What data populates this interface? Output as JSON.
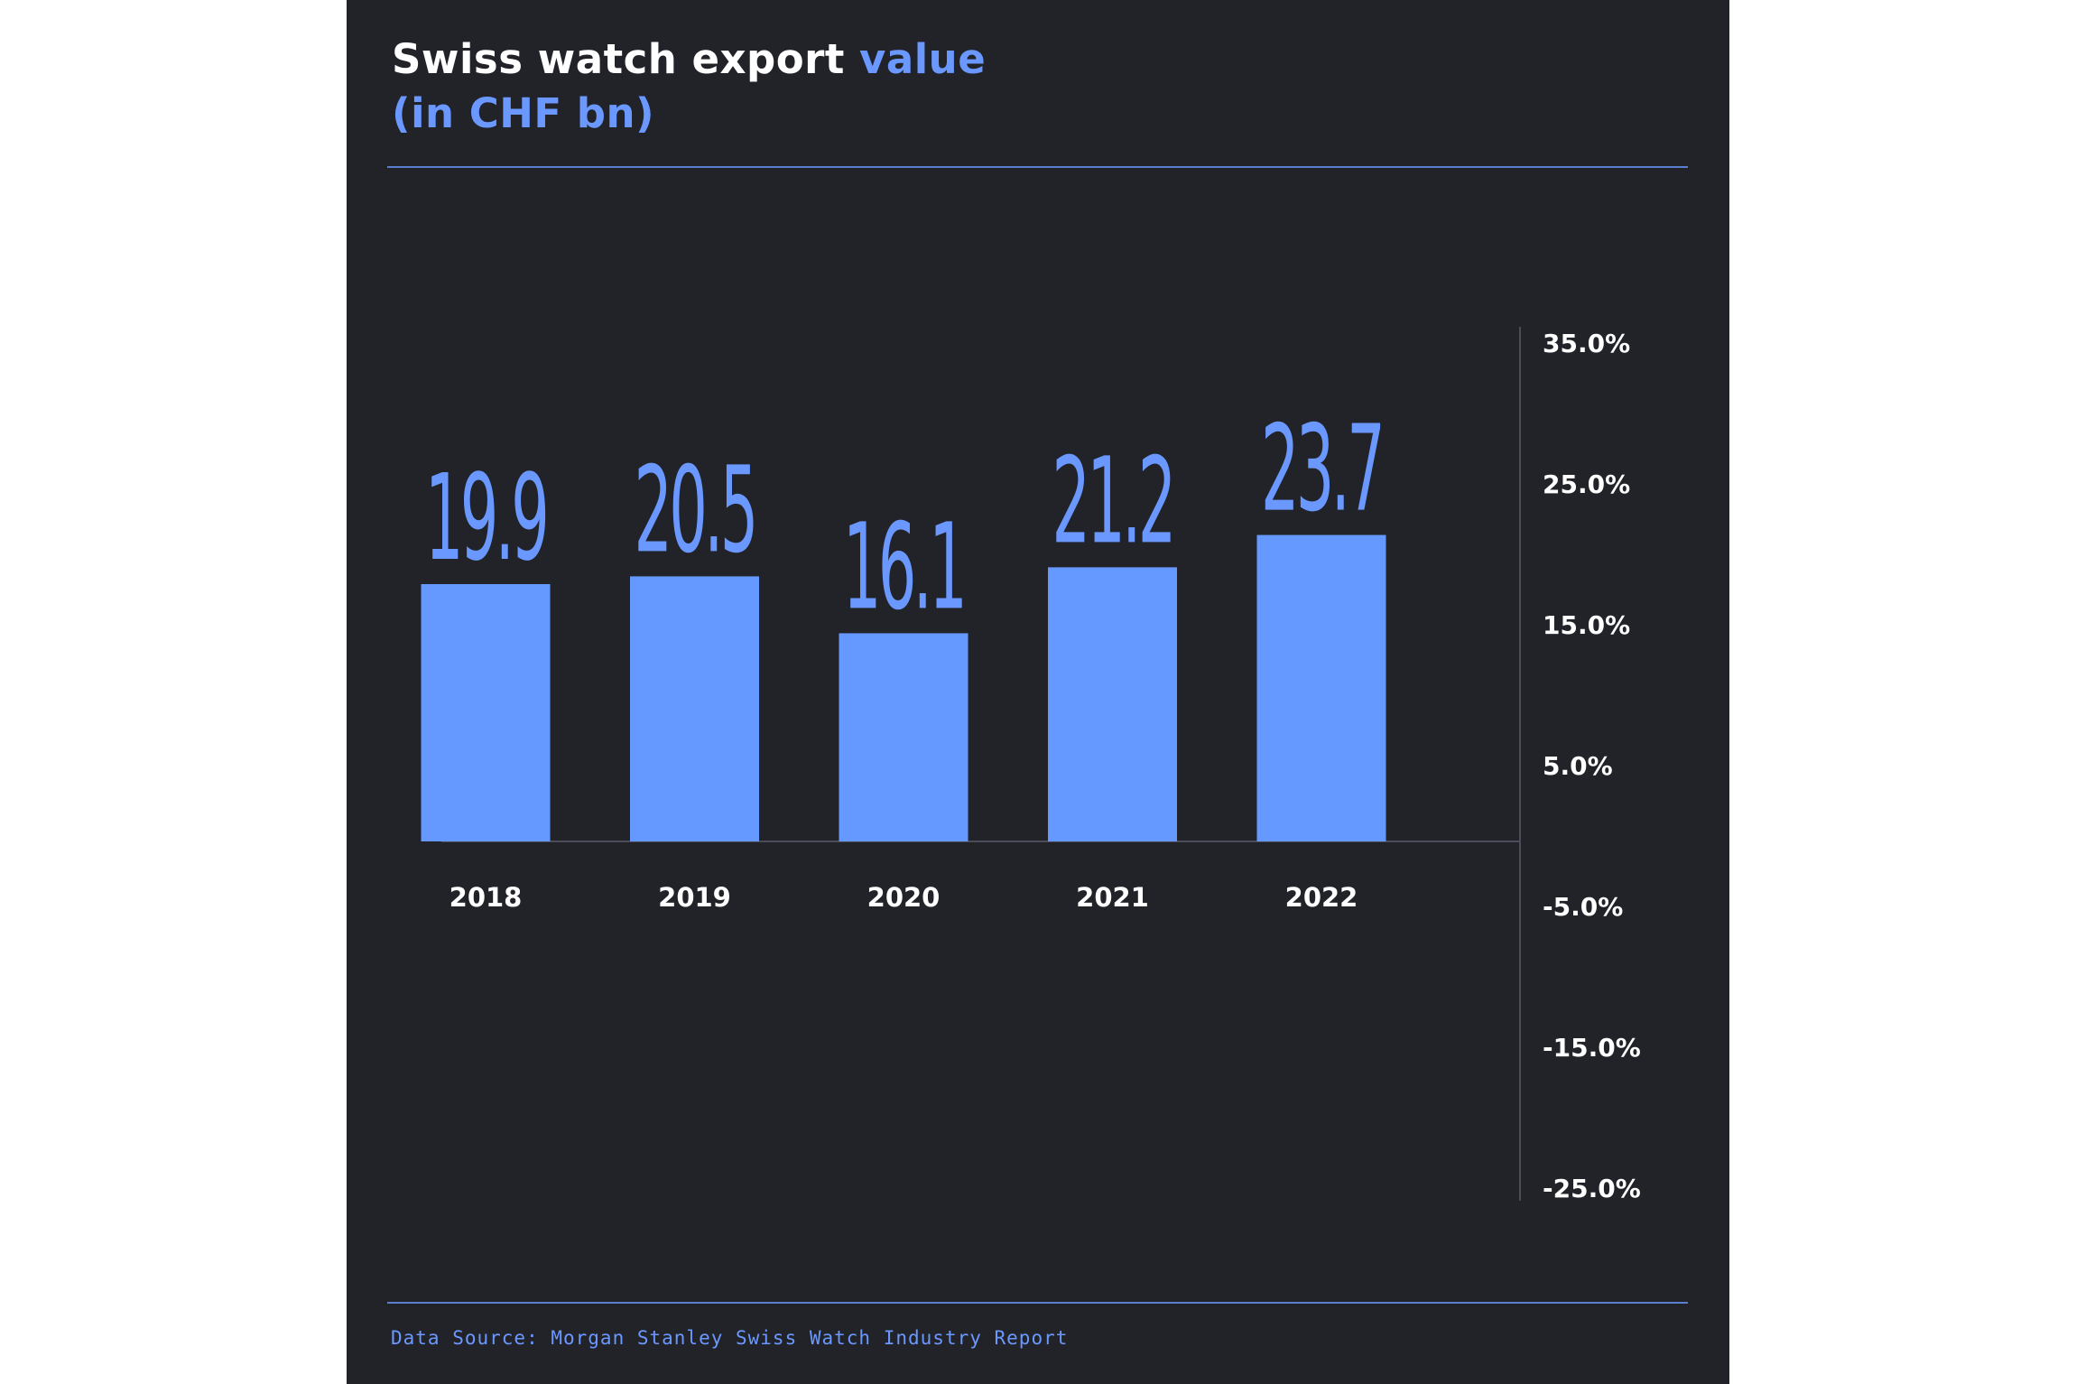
{
  "header": {
    "title_main": "Swiss watch export",
    "title_accent": "value",
    "subtitle": "(in CHF bn)"
  },
  "footer": {
    "source": "Data Source: Morgan Stanley Swiss Watch Industry Report"
  },
  "colors": {
    "background": "#212329",
    "bar": "#6699ff",
    "value_label": "#6b98ff",
    "text": "#ffffff",
    "rule": "#5b7fd0"
  },
  "chart_data": {
    "type": "bar",
    "title": "Swiss watch export value (in CHF bn)",
    "categories": [
      "2018",
      "2019",
      "2020",
      "2021",
      "2022"
    ],
    "values": [
      19.9,
      20.5,
      16.1,
      21.2,
      23.7
    ],
    "value_labels": [
      "19.9",
      "20.5",
      "16.1",
      "21.2",
      "23.7"
    ],
    "y2_ticks": [
      "35.0%",
      "25.0%",
      "15.0%",
      "5.0%",
      "-5.0%",
      "-15.0%",
      "-25.0%"
    ],
    "y2_tick_values": [
      35,
      25,
      15,
      5,
      -5,
      -15,
      -25
    ],
    "grid": false,
    "legend": "none"
  }
}
